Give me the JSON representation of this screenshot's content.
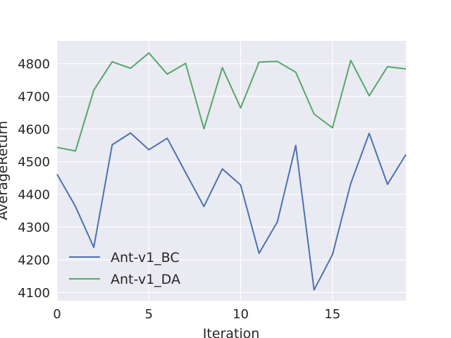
{
  "chart_data": {
    "type": "line",
    "title": "",
    "xlabel": "Iteration",
    "ylabel": "AverageReturn",
    "xlim": [
      0,
      19
    ],
    "ylim": [
      4075,
      4870
    ],
    "xticks": [
      0,
      5,
      10,
      15
    ],
    "yticks": [
      4100,
      4200,
      4300,
      4400,
      4500,
      4600,
      4700,
      4800
    ],
    "grid": true,
    "legend_position": "lower-left",
    "x": [
      0,
      1,
      2,
      3,
      4,
      5,
      6,
      7,
      8,
      9,
      10,
      11,
      12,
      13,
      14,
      15,
      16,
      17,
      18,
      19
    ],
    "series": [
      {
        "name": "Ant-v1_BC",
        "color": "#4c72b0",
        "values": [
          4462,
          4363,
          4238,
          4552,
          4588,
          4537,
          4572,
          4467,
          4363,
          4478,
          4429,
          4220,
          4316,
          4550,
          4108,
          4216,
          4434,
          4587,
          4431,
          4522
        ]
      },
      {
        "name": "Ant-v1_DA",
        "color": "#55a868",
        "values": [
          4544,
          4533,
          4719,
          4806,
          4786,
          4833,
          4768,
          4801,
          4601,
          4788,
          4665,
          4805,
          4807,
          4774,
          4646,
          4604,
          4810,
          4702,
          4791,
          4784
        ]
      }
    ],
    "plot_background": "#eaeaf2",
    "grid_color": "#ffffff"
  }
}
